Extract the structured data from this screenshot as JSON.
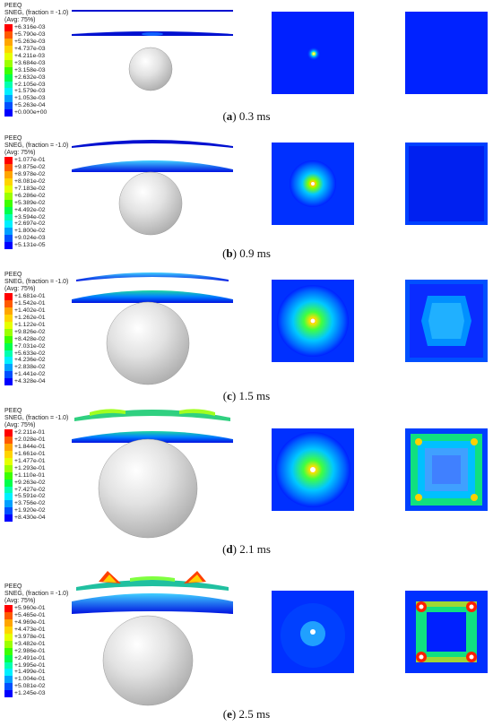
{
  "legend_header": [
    "PEEQ",
    "SNEG, (fraction = -1.0)",
    "(Avg: 75%)"
  ],
  "legend_colors": [
    "#ff0000",
    "#ff5a00",
    "#ffa500",
    "#ffd400",
    "#e6ff00",
    "#9cff00",
    "#3cff00",
    "#00ff4c",
    "#00ffb0",
    "#00f0ff",
    "#00a0ff",
    "#0050ff",
    "#0000ff"
  ],
  "panels": [
    {
      "letter": "a",
      "time": "0.3 ms",
      "values": [
        "+6.316e-03",
        "+5.790e-03",
        "+5.263e-03",
        "+4.737e-03",
        "+4.211e-03",
        "+3.684e-03",
        "+3.158e-03",
        "+2.632e-03",
        "+2.105e-03",
        "+1.579e-03",
        "+1.053e-03",
        "+5.263e-04",
        "+0.000e+00"
      ]
    },
    {
      "letter": "b",
      "time": "0.9 ms",
      "values": [
        "+1.077e-01",
        "+9.875e-02",
        "+8.978e-02",
        "+8.081e-02",
        "+7.183e-02",
        "+6.286e-02",
        "+5.389e-02",
        "+4.492e-02",
        "+3.594e-02",
        "+2.697e-02",
        "+1.800e-02",
        "+9.024e-03",
        "+5.131e-05"
      ]
    },
    {
      "letter": "c",
      "time": "1.5 ms",
      "values": [
        "+1.681e-01",
        "+1.542e-01",
        "+1.402e-01",
        "+1.262e-01",
        "+1.122e-01",
        "+9.826e-02",
        "+8.428e-02",
        "+7.031e-02",
        "+5.633e-02",
        "+4.236e-02",
        "+2.838e-02",
        "+1.441e-02",
        "+4.328e-04"
      ]
    },
    {
      "letter": "d",
      "time": "2.1 ms",
      "values": [
        "+2.211e-01",
        "+2.028e-01",
        "+1.844e-01",
        "+1.661e-01",
        "+1.477e-01",
        "+1.293e-01",
        "+1.110e-01",
        "+9.263e-02",
        "+7.427e-02",
        "+5.591e-02",
        "+3.756e-02",
        "+1.920e-02",
        "+8.430e-04"
      ]
    },
    {
      "letter": "e",
      "time": "2.5 ms",
      "values": [
        "+5.960e-01",
        "+5.465e-01",
        "+4.969e-01",
        "+4.473e-01",
        "+3.978e-01",
        "+3.482e-01",
        "+2.986e-01",
        "+2.491e-01",
        "+1.995e-01",
        "+1.499e-01",
        "+1.004e-01",
        "+5.081e-02",
        "+1.245e-03"
      ]
    }
  ]
}
